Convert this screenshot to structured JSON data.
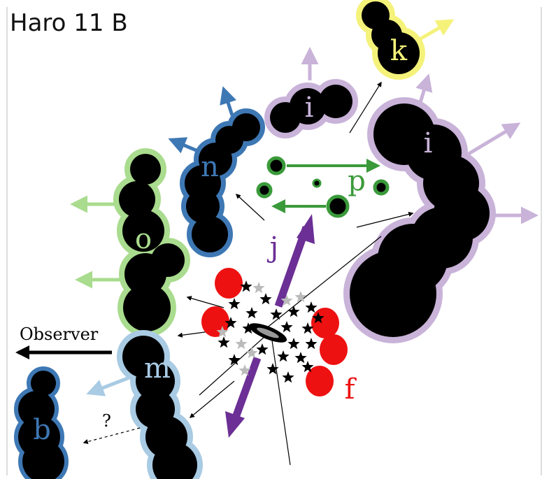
{
  "title": "Haro 11 B",
  "observer_label": "Observer",
  "question_mark": "?",
  "regions": {
    "k": "k",
    "i_top": "i",
    "i_right": "i",
    "n": "n",
    "p": "p",
    "o": "o",
    "j": "j",
    "m": "m",
    "b": "b",
    "f": "f"
  },
  "colors": {
    "k": "#f5f27a",
    "i": "#c9b3d9",
    "n": "#3e78b4",
    "p": "#3a9a3a",
    "o": "#a9dc8e",
    "j": "#6b2f95",
    "m": "#a9cbe4",
    "b": "#3e78b4",
    "f": "#ee1111",
    "observer": "#000000",
    "arrows": "#000000"
  },
  "icons": [
    "star-icon",
    "disk-icon",
    "cloud-blob-icon",
    "arrow-icon"
  ]
}
